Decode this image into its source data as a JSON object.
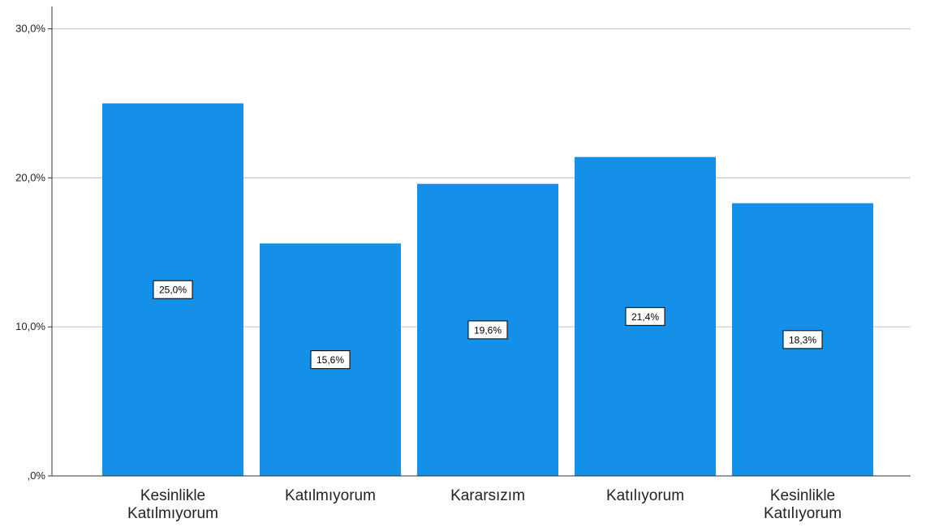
{
  "chart_data": {
    "type": "bar",
    "categories": [
      [
        "Kesinlikle",
        "Katılmıyorum"
      ],
      [
        "Katılmıyorum"
      ],
      [
        "Kararsızım"
      ],
      [
        "Katılıyorum"
      ],
      [
        "Kesinlikle",
        "Katılıyorum"
      ]
    ],
    "values": [
      25.0,
      15.6,
      19.6,
      21.4,
      18.3
    ],
    "data_labels": [
      "25,0%",
      "15,6%",
      "19,6%",
      "21,4%",
      "18,3%"
    ],
    "yticks": [
      {
        "value": 0,
        "label": ",0%"
      },
      {
        "value": 10,
        "label": "10,0%"
      },
      {
        "value": 20,
        "label": "20,0%"
      },
      {
        "value": 30,
        "label": "30,0%"
      }
    ],
    "ylim": [
      0,
      31.5
    ],
    "grid": true,
    "colors": {
      "bar": "#1590e8",
      "grid": "#c8c8c8",
      "axis": "#333333",
      "label_box": "#ffffff"
    }
  }
}
